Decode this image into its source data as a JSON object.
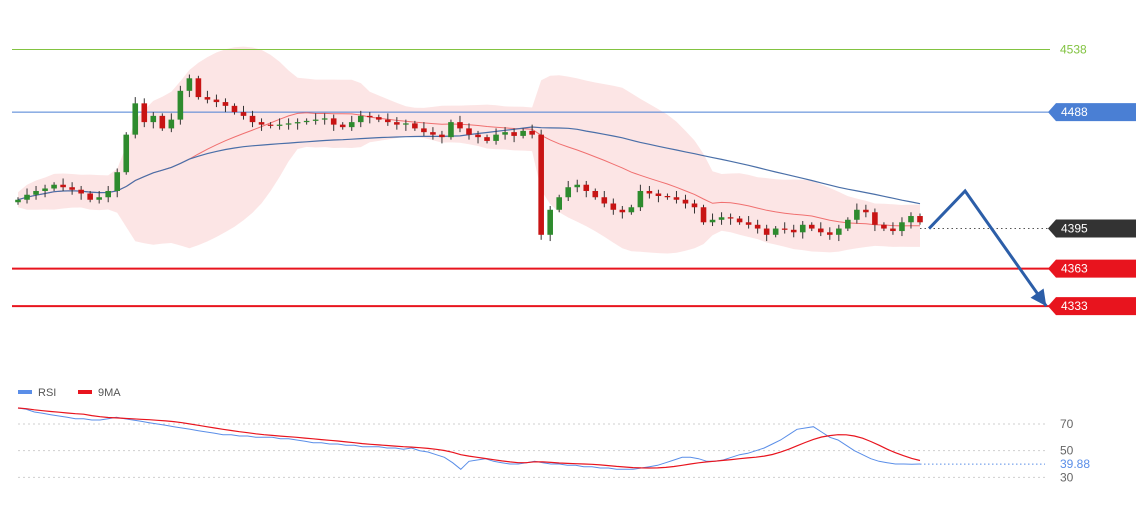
{
  "chart_data": [
    {
      "type": "candlestick",
      "title": "",
      "xlabel": "",
      "ylabel": "",
      "ylim": [
        4290,
        4544
      ],
      "series": [
        {
          "name": "",
          "type": "candlestick",
          "note": "approx. 101 candles; OHLC values derived from close series"
        },
        {
          "name": "",
          "type": "line",
          "description": "short moving average (red)"
        },
        {
          "name": "",
          "type": "line",
          "description": "long moving average (blue)"
        },
        {
          "name": "",
          "type": "band",
          "description": "bollinger band (pink fill)"
        }
      ],
      "close": [
        4418,
        4422,
        4425,
        4427,
        4430,
        4428,
        4426,
        4423,
        4418,
        4420,
        4425,
        4440,
        4470,
        4495,
        4480,
        4485,
        4475,
        4482,
        4505,
        4515,
        4500,
        4498,
        4496,
        4493,
        4488,
        4485,
        4480,
        4478,
        4477,
        4478,
        4479,
        4480,
        4481,
        4482,
        4483,
        4478,
        4476,
        4480,
        4485,
        4484,
        4482,
        4480,
        4478,
        4479,
        4475,
        4472,
        4470,
        4468,
        4480,
        4475,
        4470,
        4468,
        4465,
        4470,
        4472,
        4469,
        4473,
        4470,
        4390,
        4410,
        4420,
        4428,
        4430,
        4425,
        4420,
        4415,
        4410,
        4408,
        4412,
        4425,
        4423,
        4421,
        4420,
        4418,
        4415,
        4412,
        4400,
        4402,
        4404,
        4403,
        4400,
        4398,
        4395,
        4390,
        4395,
        4394,
        4392,
        4398,
        4395,
        4392,
        4390,
        4395,
        4402,
        4410,
        4408,
        4398,
        4395,
        4393,
        4400,
        4405,
        4400
      ],
      "levels": [
        {
          "value": 4538,
          "label": "4538",
          "color": "#82c341"
        },
        {
          "value": 4488,
          "label": "4488",
          "color": "#4a7fd4"
        },
        {
          "value": 4395,
          "label": "4395",
          "color": "#333333"
        },
        {
          "value": 4363,
          "label": "4363",
          "color": "#e8141e"
        },
        {
          "value": 4333,
          "label": "4333",
          "color": "#e8141e"
        }
      ],
      "projection": [
        {
          "index": 101,
          "price": 4395
        },
        {
          "index": 105,
          "price": 4425
        },
        {
          "index": 114,
          "price": 4333
        }
      ],
      "projection_color": "#2c5ea8"
    },
    {
      "type": "line",
      "title": "",
      "ylim": [
        28,
        88
      ],
      "yticks": [
        {
          "value": 70,
          "label": "70"
        },
        {
          "value": 50,
          "label": "50"
        },
        {
          "value": 30,
          "label": "30"
        }
      ],
      "legend": [
        {
          "name": "RSI",
          "color": "#5a8ee8"
        },
        {
          "name": "9MA",
          "color": "#e8141e"
        }
      ],
      "current_value": {
        "value": 39.88,
        "label": "39.88",
        "color": "#5a8ee8"
      },
      "rsi": [
        82,
        81,
        79,
        78,
        77,
        76,
        75,
        74,
        74,
        73,
        73,
        74,
        75,
        74,
        73,
        72,
        71,
        70,
        69,
        68,
        67,
        66,
        65,
        64,
        63,
        62,
        62,
        61,
        61,
        60,
        60,
        60,
        59,
        59,
        58,
        57,
        56,
        56,
        55,
        55,
        54,
        54,
        53,
        53,
        53,
        52,
        52,
        51,
        52,
        50,
        49,
        47,
        45,
        41,
        36,
        42,
        43,
        44,
        42,
        41,
        40,
        40,
        41,
        42,
        41,
        40,
        40,
        39,
        39,
        38,
        38,
        37,
        37,
        36,
        36,
        36,
        37,
        38,
        39,
        41,
        43,
        45,
        45,
        44,
        42,
        42,
        43,
        45,
        47,
        48,
        50,
        52,
        55,
        58,
        62,
        66,
        67,
        68,
        64,
        60,
        58,
        54,
        50,
        47,
        44,
        42,
        41,
        40,
        40,
        39.88,
        40
      ]
    }
  ]
}
